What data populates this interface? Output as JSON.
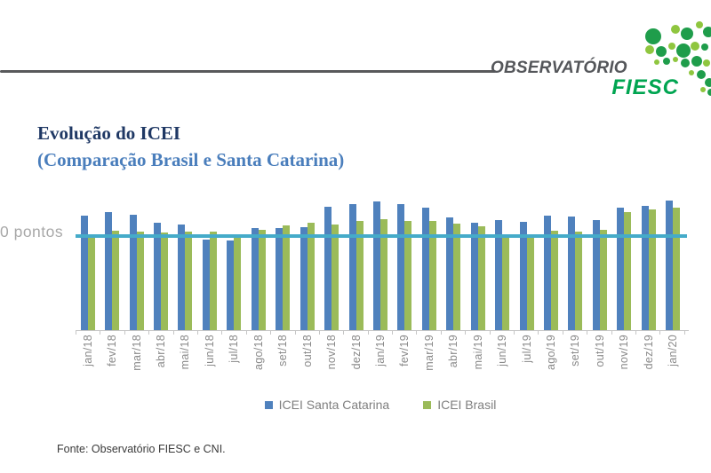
{
  "logo": {
    "brand": "OBSERVATÓRIO",
    "sub_brand": "FIESC",
    "mark_icon": "green-dots-map-icon",
    "colors": {
      "brand_gray": "#54565a",
      "fiesc_green": "#00a551",
      "dot_dark_green": "#1f9d4b",
      "dot_light_green": "#8fc63f"
    }
  },
  "title": {
    "line1": "Evolução do ICEI",
    "line2": "(Comparação Brasil e Santa Catarina)"
  },
  "footer": {
    "source": "Fonte: Observatório FIESC e CNI."
  },
  "chart_data": {
    "type": "bar",
    "title": "Evolução do ICEI (Comparação Brasil e Santa Catarina)",
    "xlabel": "",
    "ylabel": "pontos",
    "ylim": [
      0,
      72
    ],
    "grid": false,
    "legend_position": "bottom",
    "x_tick_rotation": 90,
    "categories": [
      "jan/18",
      "fev/18",
      "mar/18",
      "abr/18",
      "mai/18",
      "jun/18",
      "jul/18",
      "ago/18",
      "set/18",
      "out/18",
      "nov/18",
      "dez/18",
      "jan/19",
      "fev/19",
      "mar/19",
      "abr/19",
      "mai/19",
      "jun/19",
      "jul/19",
      "ago/19",
      "set/19",
      "out/19",
      "nov/19",
      "dez/19",
      "jan/20"
    ],
    "series": [
      {
        "name": "ICEI Santa Catarina",
        "color": "#4f81bd",
        "values": [
          61.3,
          62.9,
          61.8,
          57.5,
          56.3,
          48.3,
          47.7,
          54.5,
          54.5,
          55.1,
          66.0,
          67.3,
          68.6,
          67.5,
          65.4,
          60.3,
          57.2,
          58.8,
          58.0,
          61.1,
          60.7,
          58.8,
          65.4,
          66.4,
          69.2
        ]
      },
      {
        "name": "ICEI Brasil",
        "color": "#9bbb59",
        "values": [
          49.3,
          53.1,
          52.7,
          52.3,
          52.7,
          52.4,
          49.8,
          53.6,
          55.8,
          57.5,
          56.5,
          58.1,
          59.1,
          58.4,
          58.4,
          56.7,
          55.3,
          51.2,
          51.2,
          53.2,
          52.7,
          53.6,
          63.2,
          64.3,
          65.4
        ]
      }
    ],
    "reference_line": {
      "value": 50,
      "label": "0 pontos",
      "color": "#45abc9"
    }
  }
}
